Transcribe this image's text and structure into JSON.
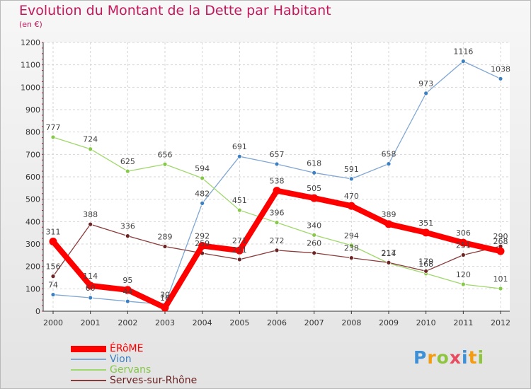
{
  "title": "Evolution du Montant de la Dette par Habitant",
  "subtitle": "(en €)",
  "logo": {
    "letters": [
      "P",
      "r",
      "o",
      "x",
      "i",
      "t",
      "i"
    ],
    "colors": [
      "#3d8fd6",
      "#f39c12",
      "#8fc43e",
      "#e84a5f",
      "#3d8fd6",
      "#f39c12",
      "#8fc43e"
    ]
  },
  "chart_data": {
    "type": "line",
    "title": "Evolution du Montant de la Dette par Habitant",
    "ylabel": "(en €)",
    "xlabel": "",
    "categories": [
      "2000",
      "2001",
      "2002",
      "2003",
      "2004",
      "2005",
      "2006",
      "2007",
      "2008",
      "2009",
      "2010",
      "2011",
      "2012"
    ],
    "ylim": [
      0,
      1200
    ],
    "yticks": [
      0,
      100,
      200,
      300,
      400,
      500,
      600,
      700,
      800,
      900,
      1000,
      1100,
      1200
    ],
    "grid": true,
    "legend_position": "bottom-left",
    "series": [
      {
        "name": "ÉRôME",
        "color": "#ff0000",
        "emphasis": true,
        "values": [
          311,
          114,
          95,
          16,
          292,
          271,
          538,
          505,
          470,
          389,
          351,
          306,
          268
        ]
      },
      {
        "name": "Vion",
        "color": "#7fa6d4",
        "marker": "#3d80c2",
        "values": [
          74,
          60,
          44,
          30,
          482,
          691,
          657,
          618,
          591,
          658,
          973,
          1116,
          1038
        ]
      },
      {
        "name": "Gervans",
        "color": "#9fd86b",
        "marker": "#86c84a",
        "values": [
          777,
          724,
          625,
          656,
          594,
          451,
          396,
          340,
          294,
          214,
          168,
          120,
          101
        ]
      },
      {
        "name": "Serves-sur-Rhône",
        "color": "#8b3a3a",
        "marker": "#6b2323",
        "values": [
          156,
          388,
          336,
          289,
          259,
          231,
          272,
          260,
          238,
          217,
          179,
          251,
          290
        ]
      }
    ]
  }
}
